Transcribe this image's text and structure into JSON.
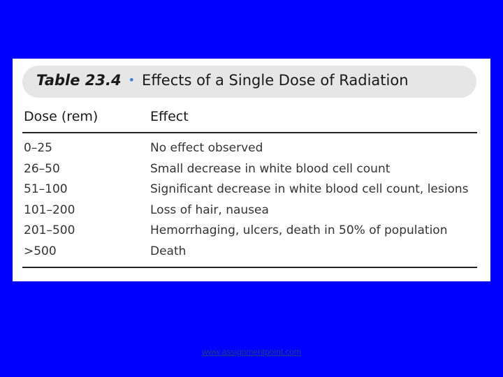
{
  "table": {
    "number": "Table 23.4",
    "bullet": "•",
    "title": "Effects of a Single Dose of Radiation",
    "columns": [
      "Dose (rem)",
      "Effect"
    ],
    "rows": [
      {
        "dose": "0–25",
        "effect": "No effect observed"
      },
      {
        "dose": "26–50",
        "effect": "Small decrease in white blood cell count"
      },
      {
        "dose": "51–100",
        "effect": "Significant decrease in white blood cell count, lesions"
      },
      {
        "dose": "101–200",
        "effect": "Loss of hair, nausea"
      },
      {
        "dose": "201–500",
        "effect": "Hemorrhaging, ulcers, death in 50% of population"
      },
      {
        "dose": ">500",
        "effect": "Death"
      }
    ]
  },
  "footer": {
    "text": "www.assignmentpoint.com"
  },
  "colors": {
    "background": "#0000FF",
    "title_bar": "#E6E6E6",
    "bullet": "#2E7FE0"
  }
}
